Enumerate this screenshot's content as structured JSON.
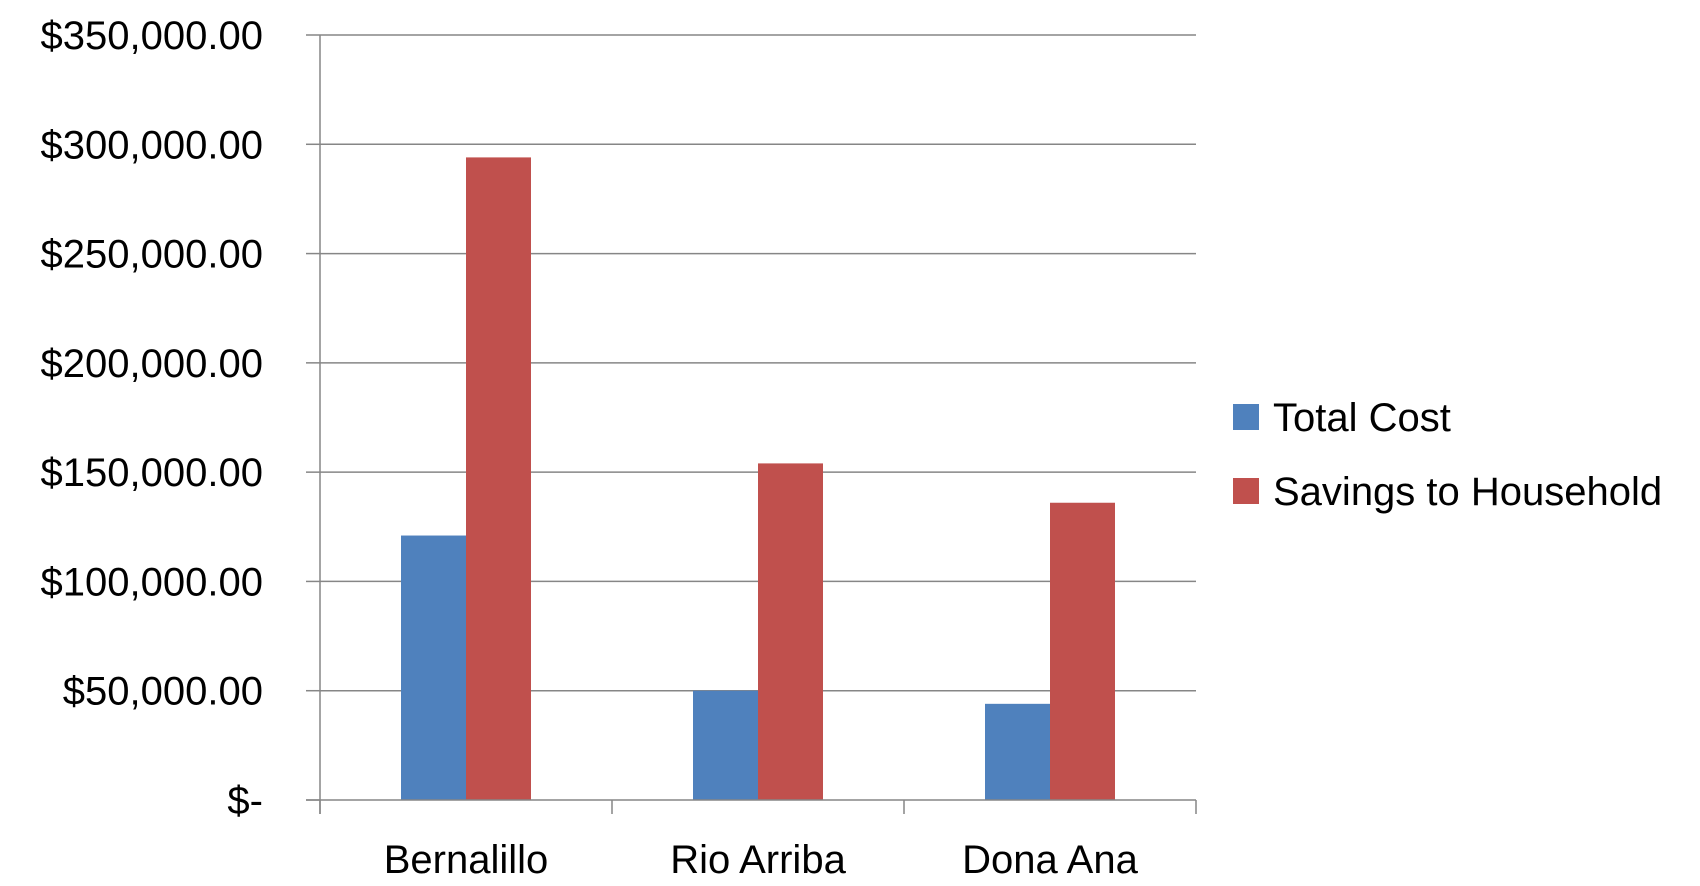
{
  "chart_data": {
    "type": "bar",
    "title": "",
    "xlabel": "",
    "ylabel": "",
    "categories": [
      "Bernalillo",
      "Rio Arriba",
      "Dona Ana"
    ],
    "series": [
      {
        "name": "Total Cost",
        "color": "#4F81BD",
        "values": [
          121000,
          50000,
          44000
        ]
      },
      {
        "name": "Savings to Household",
        "color": "#C0504D",
        "values": [
          294000,
          154000,
          136000
        ]
      }
    ],
    "ylim": [
      0,
      350000
    ],
    "yticks": [
      0,
      50000,
      100000,
      150000,
      200000,
      250000,
      300000,
      350000
    ],
    "ytick_labels": [
      "$-",
      "$50,000.00",
      "$100,000.00",
      "$150,000.00",
      "$200,000.00",
      "$250,000.00",
      "$300,000.00",
      "$350,000.00"
    ],
    "grid": true,
    "legend_position": "right"
  }
}
